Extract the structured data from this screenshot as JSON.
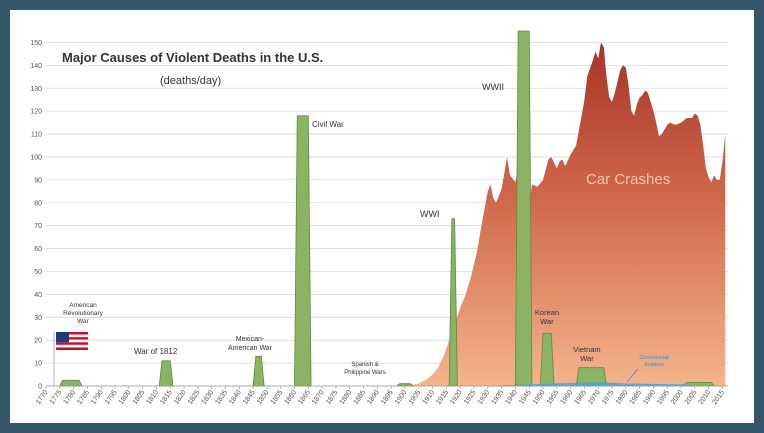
{
  "chart_data": {
    "type": "area",
    "title": "Major Causes of Violent Deaths in the U.S.",
    "subtitle": "(deaths/day)",
    "ylim": [
      0,
      155
    ],
    "xlim": [
      1770,
      2017
    ],
    "y_ticks": [
      0,
      10,
      20,
      30,
      40,
      50,
      60,
      70,
      80,
      90,
      100,
      110,
      120,
      130,
      140,
      150
    ],
    "x_ticks": [
      1770,
      1775,
      1780,
      1785,
      1790,
      1795,
      1800,
      1805,
      1810,
      1815,
      1820,
      1825,
      1830,
      1835,
      1840,
      1845,
      1850,
      1855,
      1860,
      1865,
      1870,
      1875,
      1880,
      1885,
      1890,
      1895,
      1900,
      1905,
      1910,
      1915,
      1920,
      1925,
      1930,
      1935,
      1940,
      1945,
      1950,
      1955,
      1960,
      1965,
      1970,
      1975,
      1980,
      1985,
      1990,
      1995,
      2000,
      2005,
      2010,
      2015
    ],
    "grid": true,
    "car_crashes": {
      "name": "Car Crashes",
      "x": [
        1900,
        1905,
        1908,
        1910,
        1912,
        1914,
        1916,
        1918,
        1920,
        1922,
        1924,
        1926,
        1928,
        1930,
        1931,
        1932,
        1933,
        1935,
        1937,
        1938,
        1940,
        1941,
        1942,
        1943,
        1944,
        1945,
        1946,
        1948,
        1950,
        1952,
        1953,
        1955,
        1956,
        1957,
        1958,
        1960,
        1962,
        1964,
        1965,
        1966,
        1968,
        1969,
        1970,
        1971,
        1972,
        1973,
        1974,
        1975,
        1976,
        1978,
        1979,
        1980,
        1981,
        1982,
        1983,
        1984,
        1985,
        1986,
        1987,
        1988,
        1989,
        1990,
        1991,
        1992,
        1993,
        1994,
        1995,
        1996,
        1998,
        2000,
        2002,
        2004,
        2005,
        2006,
        2007,
        2008,
        2009,
        2010,
        2011,
        2012,
        2013,
        2014,
        2015,
        2016
      ],
      "values": [
        0,
        1,
        3,
        5,
        8,
        13,
        20,
        27,
        34,
        40,
        48,
        58,
        72,
        85,
        88,
        82,
        80,
        86,
        100,
        92,
        89,
        95,
        75,
        64,
        66,
        78,
        88,
        87,
        90,
        99,
        100,
        95,
        98,
        99,
        96,
        101,
        105,
        118,
        125,
        135,
        142,
        146,
        143,
        150,
        148,
        135,
        126,
        124,
        128,
        138,
        140,
        139,
        131,
        120,
        118,
        123,
        126,
        127,
        129,
        128,
        124,
        120,
        115,
        109,
        110,
        112,
        114,
        115,
        114,
        115,
        117,
        117,
        119,
        118,
        114,
        105,
        95,
        91,
        89,
        92,
        90,
        90,
        98,
        110
      ]
    },
    "wars": [
      {
        "label": "American Revolutionary War",
        "x": [
          1775,
          1776,
          1782,
          1783
        ],
        "values": [
          0,
          2.5,
          2.5,
          0
        ]
      },
      {
        "label": "War of 1812",
        "x": [
          1811,
          1812,
          1815,
          1816
        ],
        "values": [
          0,
          11,
          11,
          0
        ]
      },
      {
        "label": "Mexican-American War",
        "x": [
          1845,
          1846,
          1848,
          1849
        ],
        "values": [
          0,
          13,
          13,
          0
        ]
      },
      {
        "label": "Civil War",
        "x": [
          1860,
          1861,
          1865,
          1866
        ],
        "values": [
          0,
          118,
          118,
          0
        ]
      },
      {
        "label": "Spanish & Philippine Wars",
        "x": [
          1897,
          1898,
          1902,
          1903
        ],
        "values": [
          0,
          1,
          1,
          0
        ]
      },
      {
        "label": "WWI",
        "x": [
          1916,
          1917,
          1918,
          1919
        ],
        "values": [
          0,
          73,
          73,
          0
        ]
      },
      {
        "label": "WWII",
        "x": [
          1940,
          1941,
          1945,
          1946
        ],
        "values": [
          0,
          155,
          155,
          0
        ]
      },
      {
        "label": "Korean War",
        "x": [
          1949,
          1950,
          1953,
          1954
        ],
        "values": [
          0,
          23,
          23,
          0
        ]
      },
      {
        "label": "Vietnam War",
        "x": [
          1962,
          1963,
          1972,
          1973
        ],
        "values": [
          0,
          8,
          8,
          0
        ]
      },
      {
        "label": "",
        "x": [
          2001,
          2002,
          2011,
          2012
        ],
        "values": [
          0,
          1.5,
          1.5,
          0
        ]
      }
    ],
    "commercial_aviation": {
      "label": "Commercial Aviation",
      "x": [
        1930,
        1940,
        1945,
        1950,
        1955,
        1960,
        1965,
        1970,
        1975,
        1978,
        1980,
        1985,
        1990,
        1995,
        2000,
        2001,
        2002,
        2005,
        2010,
        2015
      ],
      "values": [
        0,
        0.3,
        0.6,
        0.8,
        1.0,
        1.2,
        1.4,
        1.5,
        1.3,
        1.1,
        1.0,
        0.9,
        0.8,
        0.7,
        0.6,
        1.0,
        0.4,
        0.2,
        0.05,
        0.02
      ]
    },
    "annotations": {
      "car_crashes": "Car Crashes",
      "civil_war": "Civil War",
      "wwi": "WWI",
      "wwii": "WWII",
      "war_1812": "War of 1812",
      "revolutionary_war": "American Revolutionary War",
      "mexican_war": "Mexican-American War",
      "spanish_wars": "Spanish & Philippine Wars",
      "korean_war": "Korean War",
      "vietnam_war": "Vietnam War",
      "aviation": "Commercial Aviation"
    },
    "colors": {
      "car_top": "#a63428",
      "car_bottom": "#f4b48c",
      "war_fill": "#8cb363",
      "war_stroke": "#5f8a3c",
      "aviation": "#4aa3d8",
      "car_label": "#f2c7a8",
      "grid": "#d9d9d9"
    }
  }
}
